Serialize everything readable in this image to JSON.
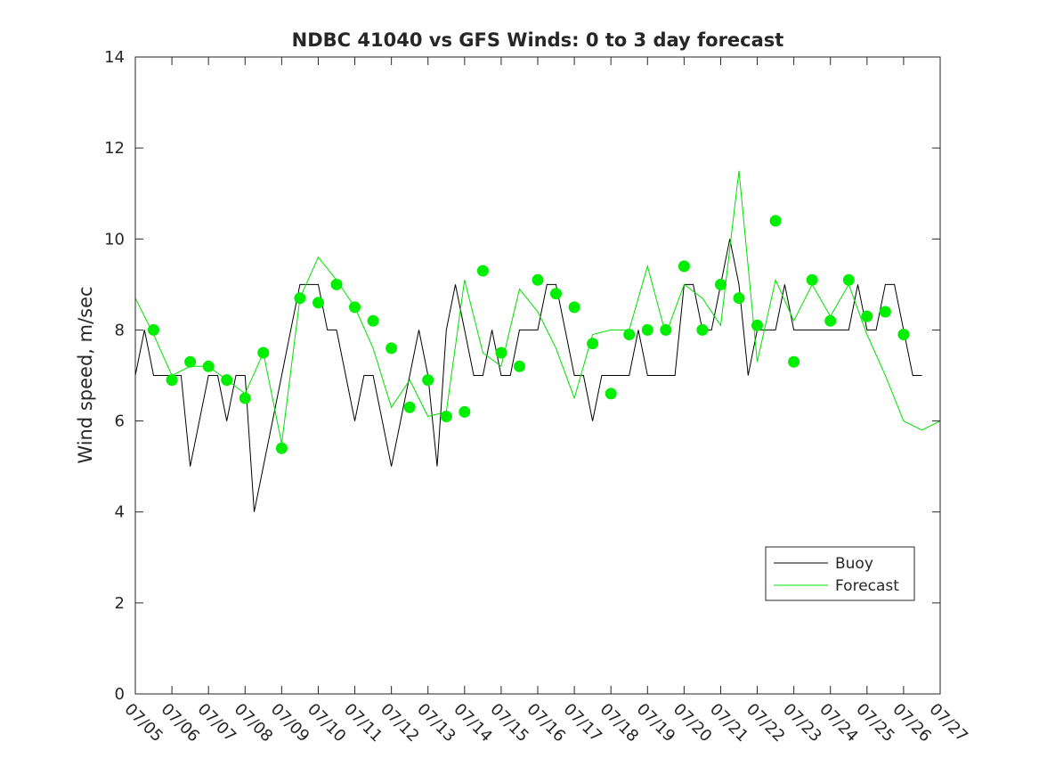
{
  "chart_data": {
    "type": "line",
    "title": "NDBC 41040 vs GFS Winds: 0 to 3 day forecast",
    "xlabel": "",
    "ylabel": "Wind speed, m/sec",
    "xlim": [
      0,
      22
    ],
    "ylim": [
      0,
      14
    ],
    "x_tick_labels": [
      "07/05",
      "07/06",
      "07/07",
      "07/08",
      "07/09",
      "07/10",
      "07/11",
      "07/12",
      "07/13",
      "07/14",
      "07/15",
      "07/16",
      "07/17",
      "07/18",
      "07/19",
      "07/20",
      "07/21",
      "07/22",
      "07/23",
      "07/24",
      "07/25",
      "07/26",
      "07/27"
    ],
    "y_ticks": [
      0,
      2,
      4,
      6,
      8,
      10,
      12,
      14
    ],
    "grid": false,
    "legend_position": "bottom-right",
    "colors": {
      "buoy": "#000000",
      "forecast": "#00e000",
      "markers": "#00ee00",
      "axes": "#262626"
    },
    "series": [
      {
        "name": "Buoy",
        "x": [
          0,
          0.25,
          0.5,
          0.75,
          1,
          1.25,
          1.5,
          1.75,
          2,
          2.25,
          2.5,
          2.75,
          3,
          3.25,
          3.5,
          3.75,
          4,
          4.25,
          4.5,
          4.75,
          5,
          5.25,
          5.5,
          5.75,
          6,
          6.25,
          6.5,
          6.75,
          7,
          7.25,
          7.5,
          7.75,
          8,
          8.25,
          8.5,
          8.75,
          9,
          9.25,
          9.5,
          9.75,
          10,
          10.25,
          10.5,
          10.75,
          11,
          11.25,
          11.5,
          11.75,
          12,
          12.25,
          12.5,
          12.75,
          13,
          13.25,
          13.5,
          13.75,
          14,
          14.25,
          14.5,
          14.75,
          15,
          15.25,
          15.5,
          15.75,
          16,
          16.25,
          16.5,
          16.75,
          17,
          17.25,
          17.5,
          17.75,
          18,
          18.25,
          18.5,
          18.75,
          19,
          19.25,
          19.5,
          19.75,
          20,
          20.25,
          20.5,
          20.75,
          21,
          21.25,
          21.5
        ],
        "y": [
          7,
          8,
          7,
          7,
          7,
          7,
          5,
          6,
          7,
          7,
          6,
          7,
          7,
          4,
          5,
          6,
          7,
          8,
          9,
          9,
          9,
          8,
          8,
          7,
          6,
          7,
          7,
          6,
          5,
          6,
          7,
          8,
          7,
          5,
          8,
          9,
          8,
          7,
          7,
          8,
          7,
          7,
          8,
          8,
          8,
          9,
          9,
          8,
          7,
          7,
          6,
          7,
          7,
          7,
          7,
          8,
          7,
          7,
          7,
          7,
          9,
          9,
          8,
          8,
          9,
          10,
          9,
          7,
          8,
          8,
          8,
          9,
          8,
          8,
          8,
          8,
          8,
          8,
          8,
          9,
          8,
          8,
          9,
          9,
          8,
          7,
          7
        ]
      },
      {
        "name": "Forecast",
        "x": [
          0,
          0.5,
          1,
          1.5,
          2,
          2.5,
          3,
          3.5,
          4,
          4.5,
          5,
          5.5,
          6,
          6.5,
          7,
          7.5,
          8,
          8.5,
          9,
          9.5,
          10,
          10.5,
          11,
          11.5,
          12,
          12.5,
          13,
          13.5,
          14,
          14.5,
          15,
          15.5,
          16,
          16.5,
          17,
          17.5,
          18,
          18.5,
          19,
          19.5,
          20,
          20.5,
          21,
          21.5,
          22
        ],
        "y": [
          8.7,
          7.9,
          7.0,
          7.2,
          7.2,
          6.9,
          6.6,
          7.5,
          5.5,
          8.7,
          9.6,
          9.1,
          8.5,
          7.6,
          6.3,
          6.9,
          6.1,
          6.2,
          9.1,
          7.5,
          7.2,
          8.9,
          8.4,
          7.6,
          6.5,
          7.9,
          8.0,
          8.0,
          9.4,
          7.9,
          9.0,
          8.7,
          8.1,
          11.5,
          7.3,
          9.1,
          8.2,
          9.0,
          8.3,
          9.0,
          7.9,
          7.0,
          6.0,
          5.8,
          6.0
        ]
      }
    ],
    "forecast_markers": {
      "x": [
        0.5,
        1,
        1.5,
        2,
        2.5,
        3,
        3.5,
        4,
        4.5,
        5,
        5.5,
        6,
        6.5,
        7,
        7.5,
        8,
        8.5,
        9,
        9.5,
        10,
        10.5,
        11,
        11.5,
        12,
        12.5,
        13,
        13.5,
        14,
        14.5,
        15,
        15.5,
        16,
        16.5,
        17,
        17.5,
        18,
        18.5,
        19,
        19.5,
        20,
        20.5,
        21
      ],
      "y": [
        8.0,
        6.9,
        7.3,
        7.2,
        6.9,
        6.5,
        7.5,
        5.4,
        8.7,
        8.6,
        9.0,
        8.5,
        8.2,
        7.6,
        6.3,
        6.9,
        6.1,
        6.2,
        9.3,
        7.5,
        7.2,
        9.1,
        8.8,
        8.5,
        7.7,
        6.6,
        7.9,
        8.0,
        8.0,
        9.4,
        8.0,
        9.0,
        8.7,
        8.1,
        10.4,
        7.3,
        9.1,
        8.2,
        9.1,
        8.3,
        8.4,
        7.9
      ]
    }
  }
}
